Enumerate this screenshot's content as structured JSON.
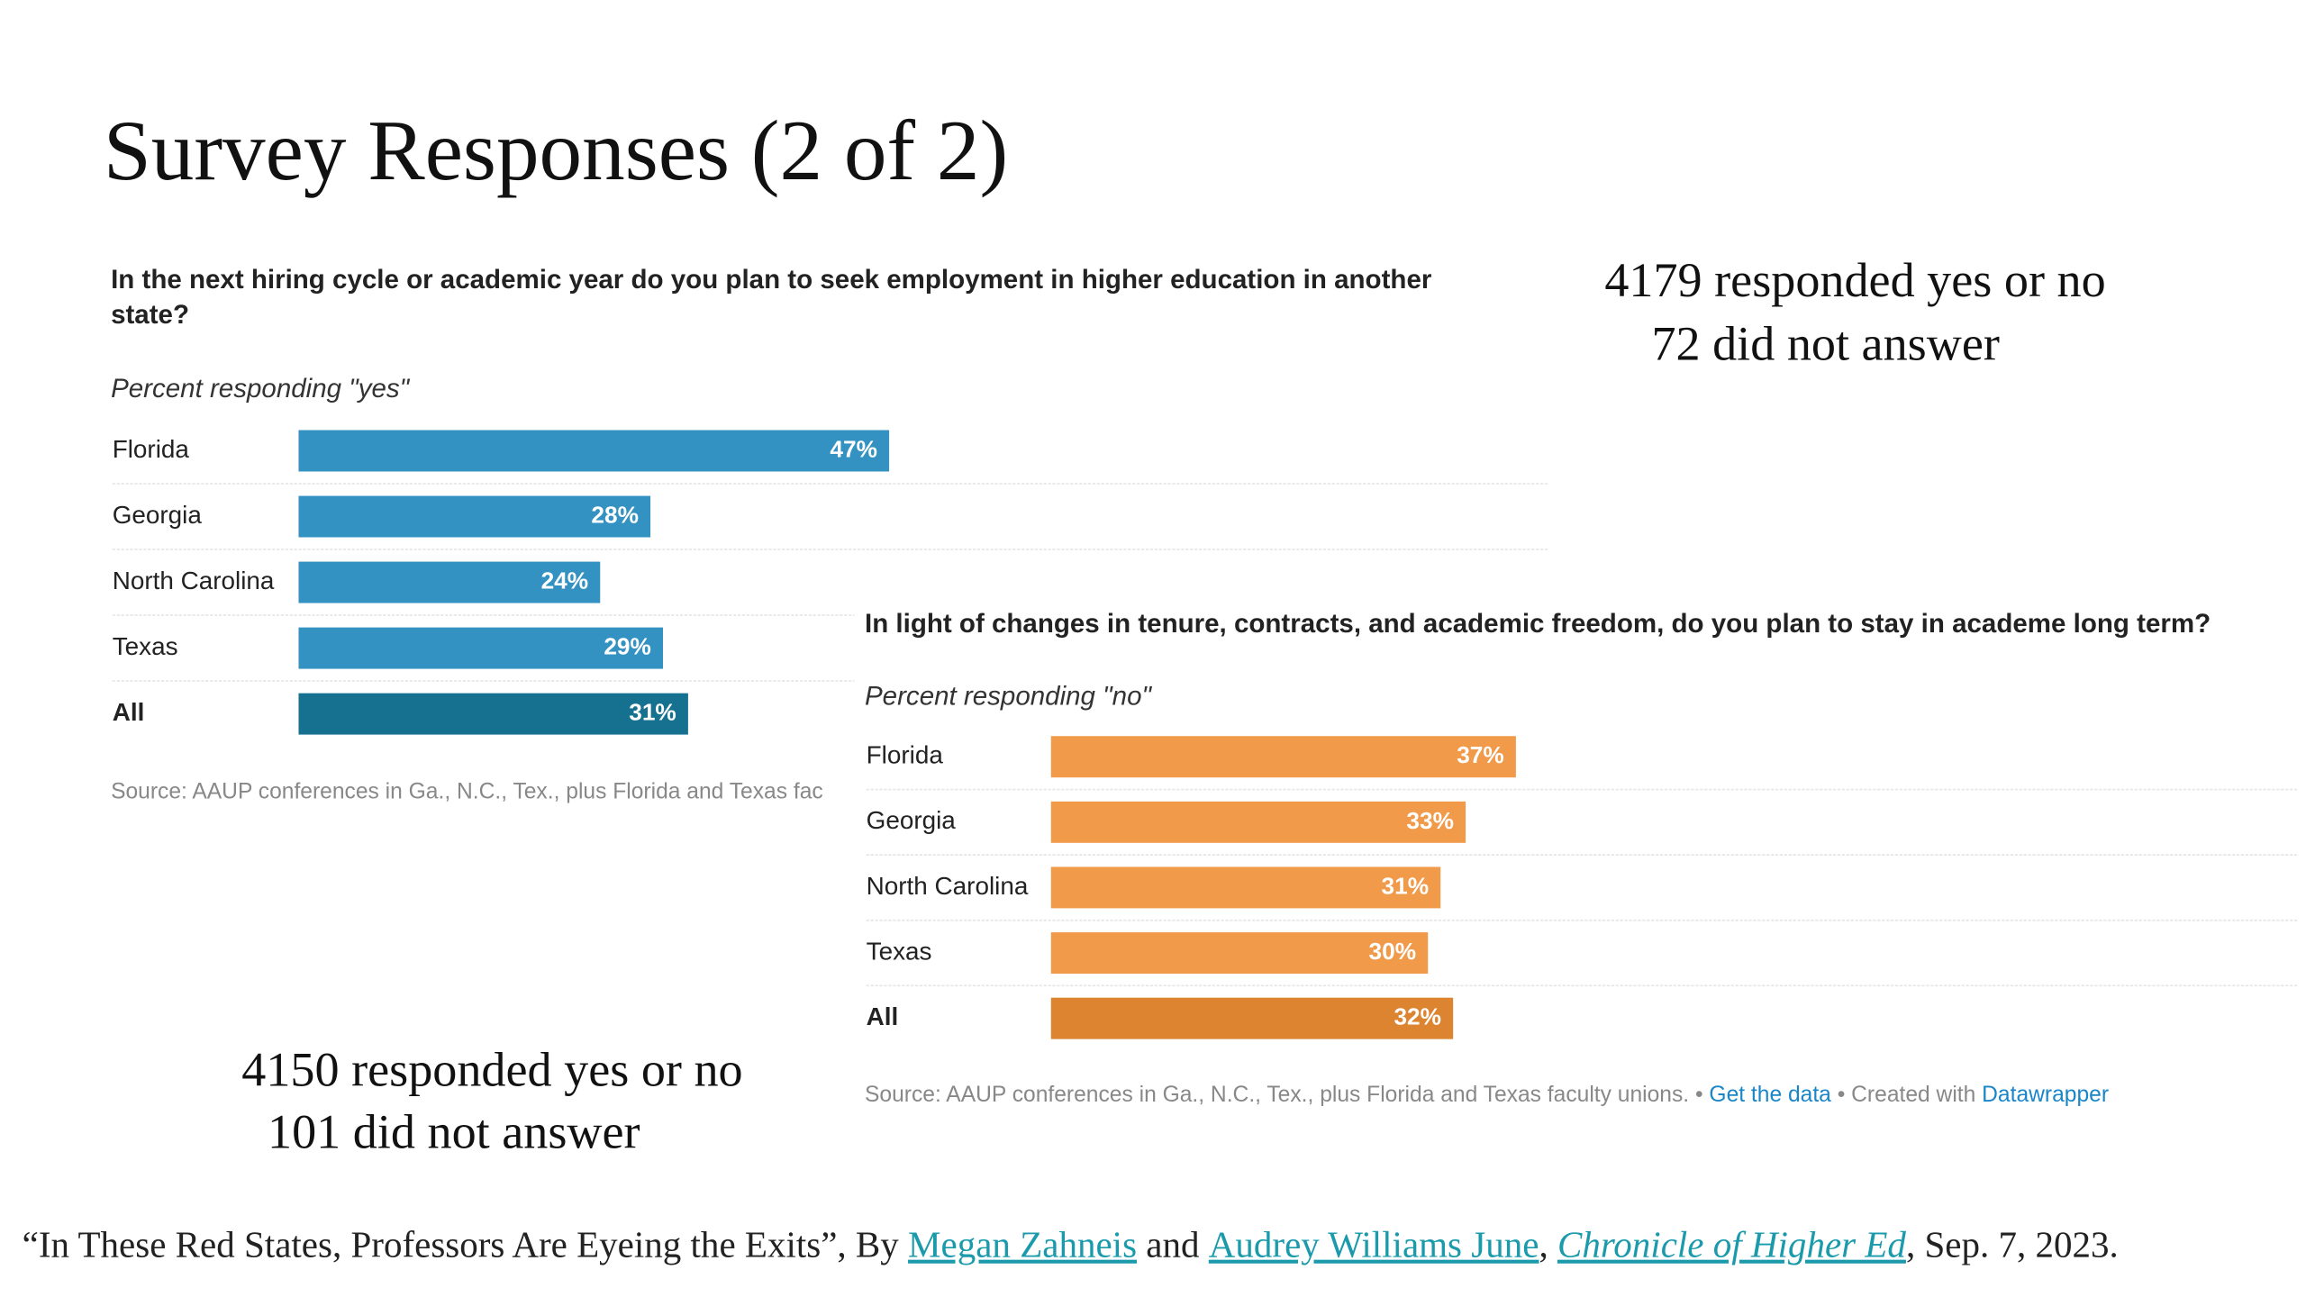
{
  "title": "Survey Responses (2 of 2)",
  "annotations": [
    "4179 responded yes or no",
    "72 did not answer",
    "4150 responded yes or no",
    "101 did not answer"
  ],
  "citation": [
    "“In These Red States, Professors Are Eyeing the Exits”, By ",
    "Megan Zahneis",
    " and ",
    "Audrey Williams June",
    ", ",
    "Chronicle of Higher Ed",
    ", Sep. 7, 2023."
  ],
  "chart_data": [
    {
      "type": "bar",
      "orientation": "horizontal",
      "title": "In the next hiring cycle or academic year do you plan to seek employment in higher education in another state?",
      "subtitle": "Percent responding \"yes\"",
      "categories": [
        "Florida",
        "Georgia",
        "North Carolina",
        "Texas",
        "All"
      ],
      "values": [
        47,
        28,
        24,
        29,
        31
      ],
      "value_labels": [
        "47%",
        "28%",
        "24%",
        "29%",
        "31%"
      ],
      "colors": [
        "#3392c1",
        "#3392c1",
        "#3392c1",
        "#3392c1",
        "#16708f"
      ],
      "source": [
        {
          "text": "Source: AAUP conferences in Ga., N.C., Tex., plus Florida and Texas fac",
          "link": false
        }
      ]
    },
    {
      "type": "bar",
      "orientation": "horizontal",
      "title": "In light of changes in tenure, contracts, and academic freedom, do you plan to stay in academe long term?",
      "subtitle": "Percent responding \"no\"",
      "categories": [
        "Florida",
        "Georgia",
        "North Carolina",
        "Texas",
        "All"
      ],
      "values": [
        37,
        33,
        31,
        30,
        32
      ],
      "value_labels": [
        "37%",
        "33%",
        "31%",
        "30%",
        "32%"
      ],
      "colors": [
        "#f09a4a",
        "#f09a4a",
        "#f09a4a",
        "#f09a4a",
        "#dc8430"
      ],
      "source": [
        {
          "text": "Source: AAUP conferences in Ga., N.C., Tex., plus Florida and Texas faculty unions. ",
          "link": false
        },
        {
          "text": " • ",
          "link": false
        },
        {
          "text": "Get the data",
          "link": true
        },
        {
          "text": " • Created with ",
          "link": false
        },
        {
          "text": "Datawrapper",
          "link": true
        }
      ]
    }
  ]
}
